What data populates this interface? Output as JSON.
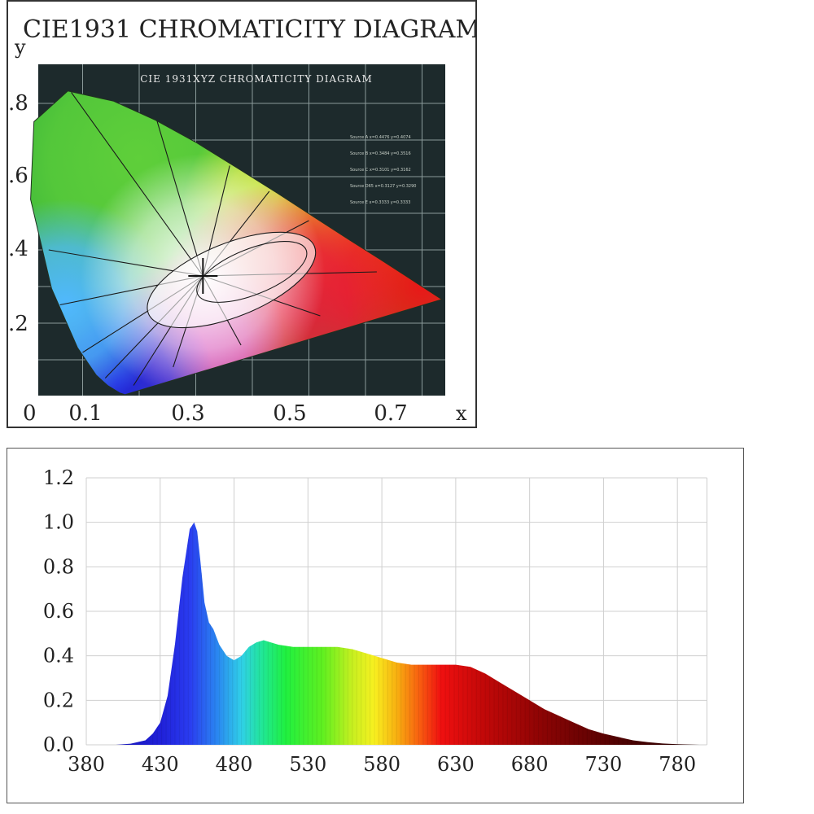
{
  "chart_data": [
    {
      "type": "diagram",
      "title": "CIE1931 CHROMATICITY DIAGRAM",
      "subtitle": "CIE 1931XYZ CHROMATICITY DIAGRAM",
      "xlabel": "x",
      "ylabel": "y",
      "x_ticks": [
        "0",
        "0.1",
        "0.3",
        "0.5",
        "0.7"
      ],
      "y_ticks": [
        ".8",
        ".6",
        ".4",
        ".2"
      ],
      "xlim": [
        0,
        0.8
      ],
      "ylim": [
        0,
        0.9
      ],
      "grid": true,
      "locus": [
        [
          0.175,
          0.005
        ],
        [
          0.166,
          0.009
        ],
        [
          0.144,
          0.03
        ],
        [
          0.124,
          0.058
        ],
        [
          0.091,
          0.133
        ],
        [
          0.045,
          0.295
        ],
        [
          0.008,
          0.538
        ],
        [
          0.014,
          0.75
        ],
        [
          0.074,
          0.834
        ],
        [
          0.155,
          0.806
        ],
        [
          0.229,
          0.754
        ],
        [
          0.302,
          0.692
        ],
        [
          0.373,
          0.624
        ],
        [
          0.444,
          0.555
        ],
        [
          0.512,
          0.487
        ],
        [
          0.575,
          0.424
        ],
        [
          0.627,
          0.373
        ],
        [
          0.669,
          0.331
        ],
        [
          0.701,
          0.299
        ],
        [
          0.735,
          0.265
        ]
      ],
      "white_point": [
        0.3127,
        0.329
      ],
      "legend_notes": [
        "Source A x=0.4476 y=0.4074",
        "Source B x=0.3484 y=0.3516",
        "Source C x=0.3101 y=0.3162",
        "Source D65 x=0.3127 y=0.3290",
        "Source E x=0.3333 y=0.3333"
      ]
    },
    {
      "type": "area",
      "xlabel": "",
      "ylabel": "",
      "x_ticks": [
        "380",
        "430",
        "480",
        "530",
        "580",
        "630",
        "680",
        "730",
        "780"
      ],
      "y_ticks": [
        "0.0",
        "0.2",
        "0.4",
        "0.6",
        "0.8",
        "1.0",
        "1.2"
      ],
      "xlim": [
        380,
        800
      ],
      "ylim": [
        0,
        1.2
      ],
      "grid": true,
      "x": [
        380,
        400,
        410,
        420,
        425,
        430,
        435,
        440,
        445,
        450,
        453,
        455,
        457,
        460,
        463,
        466,
        470,
        475,
        480,
        485,
        490,
        495,
        500,
        505,
        510,
        520,
        530,
        540,
        550,
        560,
        570,
        580,
        590,
        600,
        610,
        620,
        630,
        640,
        650,
        660,
        670,
        680,
        690,
        700,
        710,
        720,
        730,
        740,
        750,
        760,
        770,
        780,
        790,
        795
      ],
      "values": [
        0,
        0,
        0.005,
        0.02,
        0.05,
        0.1,
        0.22,
        0.45,
        0.75,
        0.97,
        1.0,
        0.96,
        0.84,
        0.64,
        0.55,
        0.52,
        0.45,
        0.4,
        0.38,
        0.4,
        0.44,
        0.46,
        0.47,
        0.46,
        0.45,
        0.44,
        0.44,
        0.44,
        0.44,
        0.43,
        0.41,
        0.39,
        0.37,
        0.36,
        0.36,
        0.36,
        0.36,
        0.35,
        0.32,
        0.28,
        0.24,
        0.2,
        0.16,
        0.13,
        0.1,
        0.07,
        0.05,
        0.035,
        0.02,
        0.012,
        0.006,
        0.003,
        0.001,
        0
      ]
    }
  ]
}
